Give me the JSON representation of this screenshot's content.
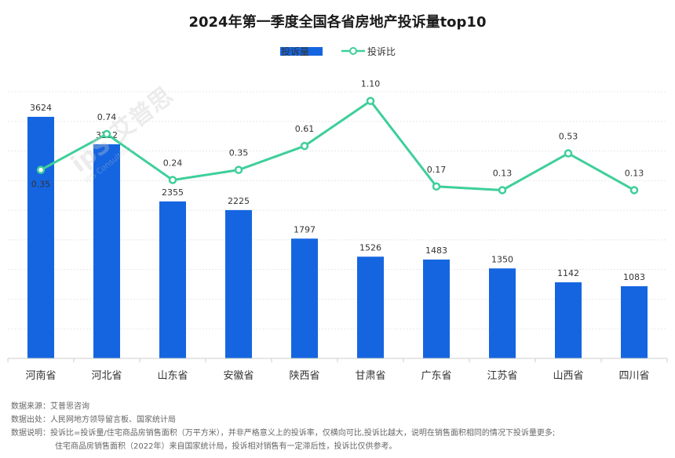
{
  "title": "2024年第一季度全国各省房地产投诉量top10",
  "legend": {
    "bar_label": "投诉量",
    "line_label": "投诉比"
  },
  "colors": {
    "bar": "#1565e0",
    "line": "#3ecf9a",
    "point_fill": "#ffffff"
  },
  "watermark": {
    "brand": "ipS 艾普思",
    "sub": "IPS Consulting"
  },
  "chart_data": {
    "type": "bar",
    "categories": [
      "河南省",
      "河北省",
      "山东省",
      "安徽省",
      "陕西省",
      "甘肃省",
      "广东省",
      "江苏省",
      "山西省",
      "四川省"
    ],
    "series": [
      {
        "name": "投诉量",
        "type": "bar",
        "values": [
          3624,
          3212,
          2355,
          2225,
          1797,
          1526,
          1483,
          1350,
          1142,
          1083
        ]
      },
      {
        "name": "投诉比",
        "type": "line",
        "values": [
          0.35,
          0.74,
          0.24,
          0.35,
          0.61,
          1.1,
          0.17,
          0.13,
          0.53,
          0.13
        ]
      }
    ],
    "ylim_bar": [
      0,
      4000
    ],
    "ylim_line": [
      -1.7,
      1.2
    ],
    "grid": true,
    "legend_position": "top-center"
  },
  "notes": [
    {
      "label": "数据来源：",
      "text": "艾普思咨询"
    },
    {
      "label": "数据出处：",
      "text": "人民网地方领导留言板、国家统计局"
    },
    {
      "label": "数据说明：",
      "text": "投诉比=投诉量/住宅商品房销售面积（万平方米），并非严格意义上的投诉率，仅横向可比,投诉比越大，说明在销售面积相同的情况下投诉量更多;"
    },
    {
      "label": "",
      "text": "住宅商品房销售面积（2022年）来自国家统计局，投诉相对销售有一定滞后性，投诉比仅供参考。"
    }
  ]
}
